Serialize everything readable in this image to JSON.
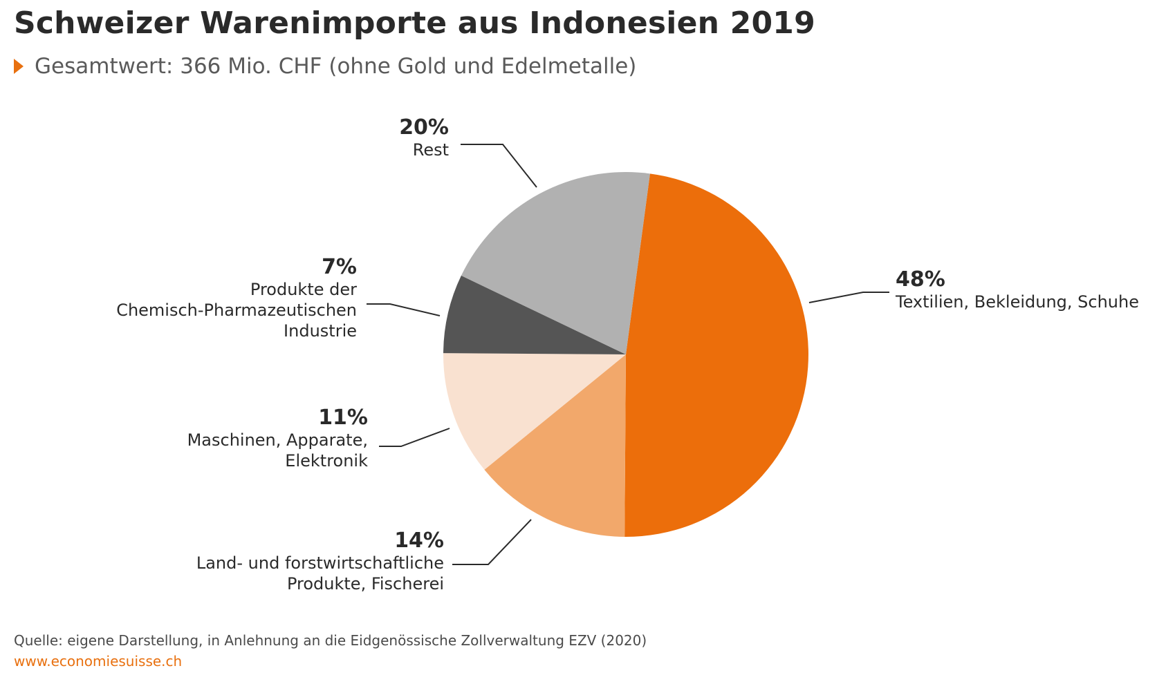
{
  "title": "Schweizer Warenimporte aus Indonesien 2019",
  "subtitle": "Gesamtwert: 366 Mio. CHF (ohne Gold und Edelmetalle)",
  "source": "Quelle: eigene Darstellung, in Anlehnung an die Eidgenössische Zollverwaltung EZV (2020)",
  "url": "www.economiesuisse.ch",
  "colors": {
    "accent": "#E8700F"
  },
  "chart_data": {
    "type": "pie",
    "title": "Schweizer Warenimporte aus Indonesien 2019",
    "total": "366 Mio. CHF",
    "slices": [
      {
        "label_pct": "48%",
        "label_lines": [
          "Textilien, Bekleidung, Schuhe"
        ],
        "value": 48,
        "color": "#EC6E0B"
      },
      {
        "label_pct": "14%",
        "label_lines": [
          "Land- und forstwirtschaftliche",
          "Produkte, Fischerei"
        ],
        "value": 14,
        "color": "#F2A86B"
      },
      {
        "label_pct": "11%",
        "label_lines": [
          "Maschinen, Apparate,",
          "Elektronik"
        ],
        "value": 11,
        "color": "#F9E1D0"
      },
      {
        "label_pct": "7%",
        "label_lines": [
          "Produkte der",
          "Chemisch-Pharmazeutischen",
          "Industrie"
        ],
        "value": 7,
        "color": "#555555"
      },
      {
        "label_pct": "20%",
        "label_lines": [
          "Rest"
        ],
        "value": 20,
        "color": "#B1B1B1"
      }
    ]
  }
}
